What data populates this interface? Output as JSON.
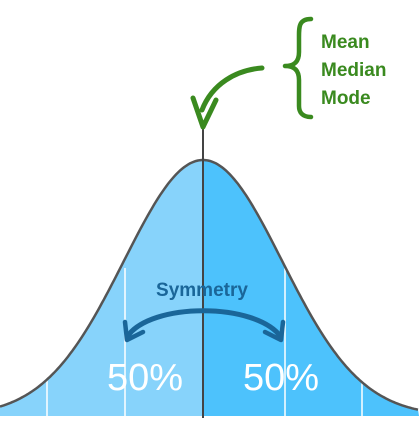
{
  "labels": {
    "mean": "Mean",
    "median": "Median",
    "mode": "Mode",
    "symmetry": "Symmetry",
    "left_percent": "50%",
    "right_percent": "50%"
  },
  "colors": {
    "left_half": "#87d3fb",
    "right_half": "#4dc2fc",
    "curve": "#555555",
    "divider": "#ffffff",
    "center_line": "#444444",
    "green": "#3a8a1f",
    "symmetry_text": "#1a6699",
    "percent_text": "#ffffff"
  }
}
